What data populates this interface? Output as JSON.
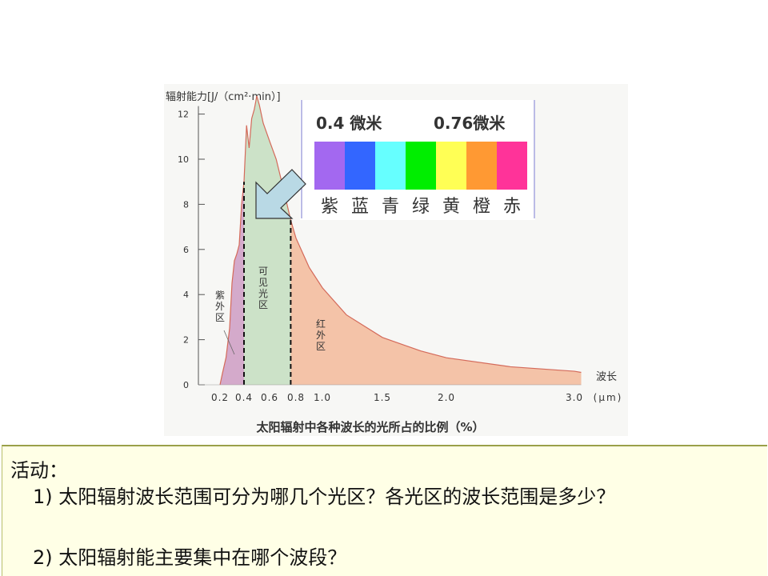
{
  "chart_data": {
    "type": "area",
    "title": "太阳辐射中各种波长的光所占的比例（%）",
    "ylabel": "辐射能力[J/（cm²·min）]",
    "xlabel_lines": [
      "波长",
      "(μm)"
    ],
    "xlim": [
      0.15,
      3.1
    ],
    "ylim": [
      0,
      12.5
    ],
    "y_ticks": [
      0,
      2,
      4,
      6,
      8,
      10,
      12
    ],
    "x_ticks": [
      {
        "value": 0.2,
        "label": "0.2"
      },
      {
        "value": 0.4,
        "label": "0.4"
      },
      {
        "value": 0.6,
        "label": "0.6"
      },
      {
        "value": 0.8,
        "label": "0.8"
      },
      {
        "value": 1.0,
        "label": "1.0"
      },
      {
        "value": 1.5,
        "label": "1.5"
      },
      {
        "value": 2.0,
        "label": "2.0"
      },
      {
        "value": 3.0,
        "label": "3.0"
      }
    ],
    "boundaries": [
      0.4,
      0.76
    ],
    "curve": [
      [
        0.2,
        0.0
      ],
      [
        0.22,
        0.5
      ],
      [
        0.25,
        1.2
      ],
      [
        0.28,
        2.5
      ],
      [
        0.3,
        4.5
      ],
      [
        0.32,
        5.5
      ],
      [
        0.34,
        5.8
      ],
      [
        0.36,
        6.2
      ],
      [
        0.38,
        8.0
      ],
      [
        0.4,
        9.0
      ],
      [
        0.42,
        11.5
      ],
      [
        0.44,
        10.5
      ],
      [
        0.46,
        11.8
      ],
      [
        0.48,
        12.2
      ],
      [
        0.5,
        12.8
      ],
      [
        0.52,
        12.4
      ],
      [
        0.55,
        11.6
      ],
      [
        0.6,
        10.8
      ],
      [
        0.65,
        10.0
      ],
      [
        0.7,
        8.8
      ],
      [
        0.76,
        7.3
      ],
      [
        0.8,
        6.5
      ],
      [
        0.9,
        5.2
      ],
      [
        1.0,
        4.3
      ],
      [
        1.2,
        3.1
      ],
      [
        1.5,
        2.1
      ],
      [
        1.8,
        1.5
      ],
      [
        2.0,
        1.2
      ],
      [
        2.5,
        0.8
      ],
      [
        3.0,
        0.6
      ],
      [
        3.05,
        0.55
      ]
    ],
    "regions": [
      {
        "label": "紫外区",
        "from": 0.2,
        "to": 0.4,
        "color": "#d4aacb"
      },
      {
        "label": "可见光区",
        "from": 0.4,
        "to": 0.76,
        "color": "#cce2c8"
      },
      {
        "label": "红外区",
        "from": 0.76,
        "to": 3.05,
        "color": "#f4c3a8"
      }
    ]
  },
  "spectrum_inset": {
    "left_label": "0.4 微米",
    "right_label": "0.76微米",
    "colors": [
      "紫",
      "蓝",
      "青",
      "绿",
      "黄",
      "橙",
      "赤"
    ],
    "swatches": [
      "#a368f0",
      "#3366ff",
      "#66ffff",
      "#00ee00",
      "#ffff55",
      "#ff9933",
      "#ff3399"
    ]
  },
  "activity": {
    "title": "活动：",
    "q1": "1) 太阳辐射波长范围可分为哪几个光区？各光区的波长范围是多少？",
    "q2": "2) 太阳辐射能主要集中在哪个波段？"
  }
}
